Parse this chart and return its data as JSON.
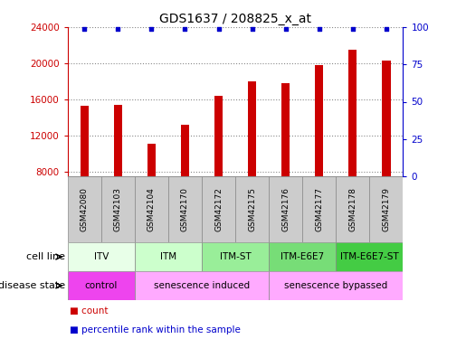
{
  "title": "GDS1637 / 208825_x_at",
  "samples": [
    "GSM42080",
    "GSM42103",
    "GSM42104",
    "GSM42170",
    "GSM42172",
    "GSM42175",
    "GSM42176",
    "GSM42177",
    "GSM42178",
    "GSM42179"
  ],
  "counts": [
    15300,
    15400,
    11100,
    13200,
    16400,
    18000,
    17800,
    19800,
    21500,
    20300
  ],
  "percentiles": [
    99,
    99,
    99,
    99,
    99,
    99,
    99,
    99,
    99,
    99
  ],
  "ylim_left": [
    7500,
    24000
  ],
  "ylim_right": [
    0,
    100
  ],
  "yticks_left": [
    8000,
    12000,
    16000,
    20000,
    24000
  ],
  "yticks_right": [
    0,
    25,
    50,
    75,
    100
  ],
  "bar_color": "#cc0000",
  "dot_color": "#0000cc",
  "bar_width": 0.25,
  "cell_line_groups": [
    {
      "label": "ITV",
      "start": 0,
      "end": 2,
      "color": "#e8ffe8"
    },
    {
      "label": "ITM",
      "start": 2,
      "end": 4,
      "color": "#ccffcc"
    },
    {
      "label": "ITM-ST",
      "start": 4,
      "end": 6,
      "color": "#99ee99"
    },
    {
      "label": "ITM-E6E7",
      "start": 6,
      "end": 8,
      "color": "#77dd77"
    },
    {
      "label": "ITM-E6E7-ST",
      "start": 8,
      "end": 10,
      "color": "#44cc44"
    }
  ],
  "disease_state_groups": [
    {
      "label": "control",
      "start": 0,
      "end": 2,
      "color": "#ee44ee"
    },
    {
      "label": "senescence induced",
      "start": 2,
      "end": 6,
      "color": "#ffaaff"
    },
    {
      "label": "senescence bypassed",
      "start": 6,
      "end": 10,
      "color": "#ffaaff"
    }
  ],
  "sample_box_color": "#cccccc",
  "bg_color": "#ffffff",
  "grid_color": "#888888"
}
